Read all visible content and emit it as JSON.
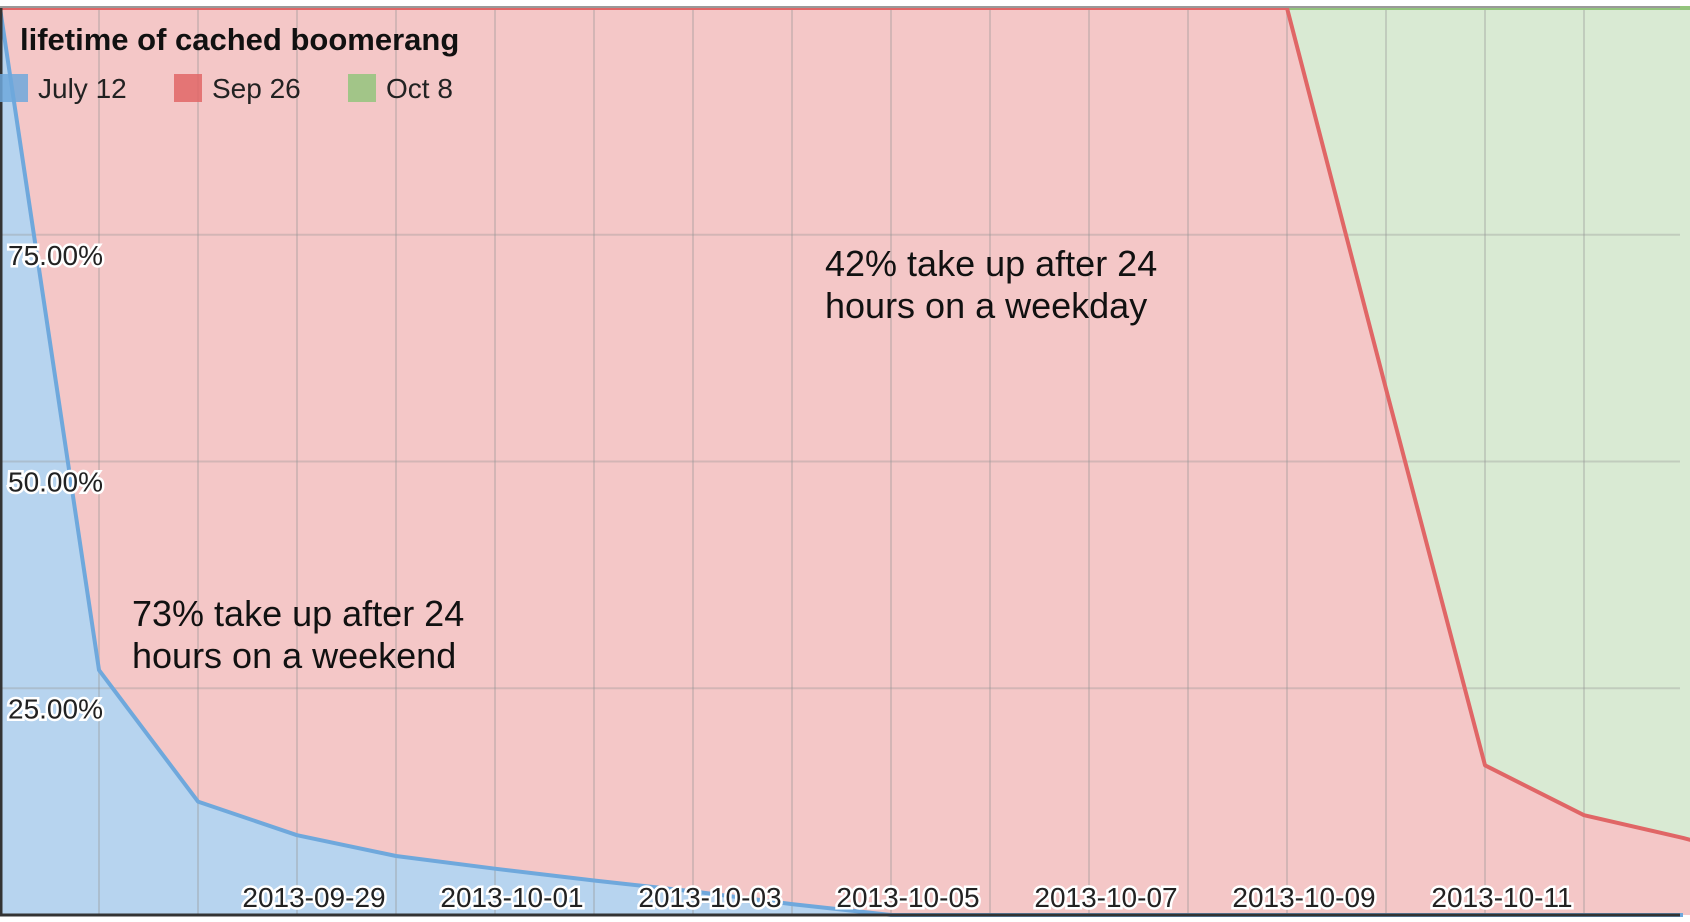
{
  "chart_data": {
    "type": "area",
    "title": "lifetime of cached boomerang",
    "legend_position": "top-left",
    "grid": true,
    "x_ticks": [
      "2013-09-29",
      "2013-10-01",
      "2013-10-03",
      "2013-10-05",
      "2013-10-07",
      "2013-10-09",
      "2013-10-11"
    ],
    "y_ticks": [
      "25.00%",
      "50.00%",
      "75.00%"
    ],
    "x_range": [
      "2013-09-27",
      "2013-10-14"
    ],
    "ylim": [
      0,
      100
    ],
    "series": [
      {
        "name": "July 12",
        "color": "#6fa8dc",
        "fill": "#b7d4ef",
        "points": [
          [
            "2013-09-27",
            100
          ],
          [
            "2013-09-28",
            27
          ],
          [
            "2013-09-29",
            12.5
          ],
          [
            "2013-09-30",
            8.8
          ],
          [
            "2013-10-01",
            6.5
          ],
          [
            "2013-10-02",
            5.1
          ],
          [
            "2013-10-03",
            3.8
          ],
          [
            "2013-10-04",
            2.6
          ],
          [
            "2013-10-05",
            1.2
          ],
          [
            "2013-10-06",
            0
          ],
          [
            "2013-10-14",
            0
          ]
        ]
      },
      {
        "name": "Sep 26",
        "color": "#e06666",
        "fill": "#f4c7c7",
        "points": [
          [
            "2013-09-27",
            100
          ],
          [
            "2013-10-10",
            100
          ],
          [
            "2013-10-11",
            58
          ],
          [
            "2013-10-12",
            16.5
          ],
          [
            "2013-10-13",
            11
          ],
          [
            "2013-10-14",
            8.5
          ],
          [
            "2013-10-15",
            5.5
          ]
        ]
      },
      {
        "name": "Oct 8",
        "color": "#93c47d",
        "fill": "#d9ead3",
        "points": [
          [
            "2013-09-27",
            100
          ],
          [
            "2013-10-15",
            100
          ]
        ]
      }
    ],
    "annotations": [
      {
        "lines": [
          "73% take up after 24",
          "hours on a weekend"
        ],
        "x": "2013-09-28",
        "y": 27
      },
      {
        "lines": [
          "42% take up after 24",
          "hours on a weekday"
        ],
        "x": "2013-10-05",
        "y": 58
      }
    ]
  }
}
